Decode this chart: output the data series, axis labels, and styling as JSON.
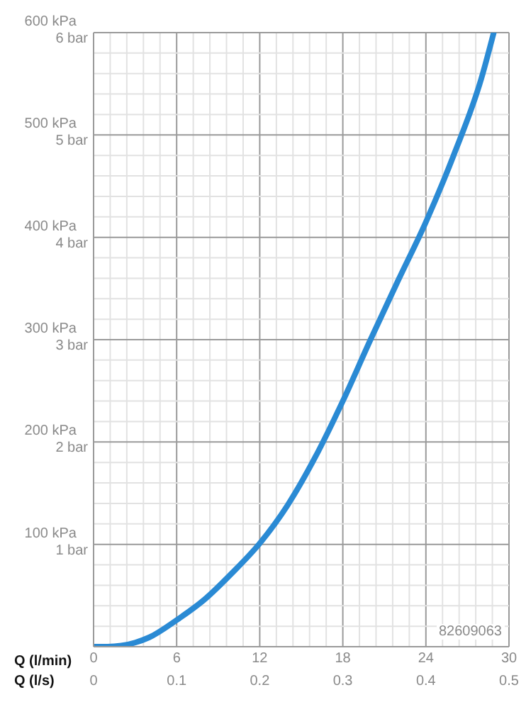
{
  "chart_data": {
    "type": "line",
    "xlabel": "Q (l/min)",
    "x2label": "Q (l/s)",
    "x": [
      0,
      1,
      2,
      3,
      4,
      6,
      8,
      10,
      12,
      14,
      16,
      18,
      20,
      22,
      24,
      26,
      28,
      28.9
    ],
    "series": [
      {
        "color": "#2a8ad4",
        "values": [
          0,
          0,
          1,
          4,
          9,
          26,
          46,
          72,
          101,
          138,
          185,
          240,
          300,
          358,
          415,
          480,
          555,
          600
        ]
      }
    ],
    "xlim": [
      0,
      30
    ],
    "xticks": [
      0,
      {
        "value": 1.2,
        "label": null
      },
      {
        "value": 2.4,
        "label": null
      },
      {
        "value": 3.6,
        "label": null
      },
      {
        "value": 4.8,
        "label": null
      },
      6,
      {
        "value": 7.2,
        "label": null
      },
      {
        "value": 8.4,
        "label": null
      },
      {
        "value": 9.6,
        "label": null
      },
      {
        "value": 10.8,
        "label": null
      },
      12,
      {
        "value": 13.2,
        "label": null
      },
      {
        "value": 14.4,
        "label": null
      },
      {
        "value": 15.6,
        "label": null
      },
      {
        "value": 16.8,
        "label": null
      },
      18,
      {
        "value": 19.2,
        "label": null
      },
      {
        "value": 20.4,
        "label": null
      },
      {
        "value": 21.6,
        "label": null
      },
      {
        "value": 22.8,
        "label": null
      },
      24,
      {
        "value": 25.2,
        "label": null
      },
      {
        "value": 26.4,
        "label": null
      },
      {
        "value": 27.6,
        "label": null
      },
      {
        "value": 28.8,
        "label": null
      },
      30
    ],
    "x2lim": [
      0,
      0.5
    ],
    "x2ticks": [
      0,
      0.1,
      0.2,
      0.3,
      0.4,
      0.5
    ],
    "ylim": [
      0,
      600
    ],
    "yticks": [
      {
        "value": 0,
        "label": null
      },
      {
        "value": 20,
        "label": null
      },
      {
        "value": 40,
        "label": null
      },
      {
        "value": 60,
        "label": null
      },
      {
        "value": 80,
        "label": null
      },
      {
        "value": 100,
        "label": "100 kPa"
      },
      {
        "value": 120,
        "label": null
      },
      {
        "value": 140,
        "label": null
      },
      {
        "value": 160,
        "label": null
      },
      {
        "value": 180,
        "label": null
      },
      {
        "value": 200,
        "label": "200 kPa"
      },
      {
        "value": 220,
        "label": null
      },
      {
        "value": 240,
        "label": null
      },
      {
        "value": 260,
        "label": null
      },
      {
        "value": 280,
        "label": null
      },
      {
        "value": 300,
        "label": "300 kPa"
      },
      {
        "value": 320,
        "label": null
      },
      {
        "value": 340,
        "label": null
      },
      {
        "value": 360,
        "label": null
      },
      {
        "value": 380,
        "label": null
      },
      {
        "value": 400,
        "label": "400 kPa"
      },
      {
        "value": 420,
        "label": null
      },
      {
        "value": 440,
        "label": null
      },
      {
        "value": 460,
        "label": null
      },
      {
        "value": 480,
        "label": null
      },
      {
        "value": 500,
        "label": "500 kPa"
      },
      {
        "value": 520,
        "label": null
      },
      {
        "value": 540,
        "label": null
      },
      {
        "value": 560,
        "label": null
      },
      {
        "value": 580,
        "label": null
      },
      {
        "value": 600,
        "label": "600 kPa"
      }
    ],
    "y2lim": [
      0,
      6
    ],
    "y2ticks": [
      {
        "value": 1,
        "label": "1 bar"
      },
      {
        "value": 2,
        "label": "2 bar"
      },
      {
        "value": 3,
        "label": "3 bar"
      },
      {
        "value": 4,
        "label": "4 bar"
      },
      {
        "value": 5,
        "label": "5 bar"
      },
      {
        "value": 6,
        "label": "6 bar"
      }
    ],
    "grid": true,
    "marker": "none",
    "line_style": "solid",
    "annotations": [
      "82609063"
    ]
  }
}
